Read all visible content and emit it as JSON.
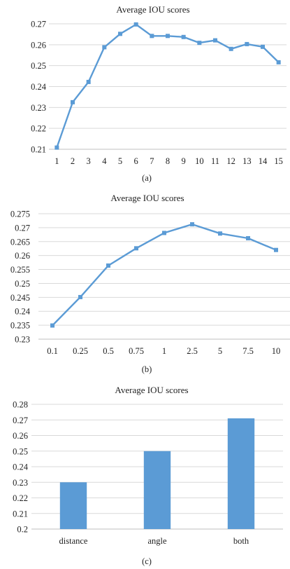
{
  "figures": [
    {
      "caption": "(a)"
    },
    {
      "caption": "(b)"
    },
    {
      "caption": "(c)"
    }
  ],
  "chart_data": [
    {
      "type": "line",
      "title": "Average IOU scores",
      "categories": [
        "1",
        "2",
        "3",
        "4",
        "5",
        "6",
        "7",
        "8",
        "9",
        "10",
        "11",
        "12",
        "13",
        "14",
        "15"
      ],
      "values": [
        0.2108,
        0.2325,
        0.2422,
        0.2588,
        0.2652,
        0.2697,
        0.2642,
        0.2642,
        0.2637,
        0.2609,
        0.2621,
        0.258,
        0.2603,
        0.259,
        0.2516
      ],
      "ylim": [
        0.21,
        0.27
      ],
      "yticks": [
        "0.21",
        "0.22",
        "0.23",
        "0.24",
        "0.25",
        "0.26",
        "0.27"
      ],
      "markers": "square",
      "grid": "horizontal",
      "color": "#5b9bd5"
    },
    {
      "type": "line",
      "title": "Average IOU scores",
      "categories": [
        "0.1",
        "0.25",
        "0.5",
        "0.75",
        "1",
        "2.5",
        "5",
        "7.5",
        "10"
      ],
      "values": [
        0.2349,
        0.2451,
        0.2564,
        0.2626,
        0.2681,
        0.2712,
        0.2679,
        0.2662,
        0.262
      ],
      "ylim": [
        0.23,
        0.275
      ],
      "yticks": [
        "0.23",
        "0.235",
        "0.24",
        "0.245",
        "0.25",
        "0.255",
        "0.26",
        "0.265",
        "0.27",
        "0.275"
      ],
      "markers": "square",
      "grid": "horizontal",
      "color": "#5b9bd5"
    },
    {
      "type": "bar",
      "title": "Average IOU scores",
      "categories": [
        "distance",
        "angle",
        "both"
      ],
      "values": [
        0.23,
        0.25,
        0.271
      ],
      "ylim": [
        0.2,
        0.28
      ],
      "yticks": [
        "0.2",
        "0.21",
        "0.22",
        "0.23",
        "0.24",
        "0.25",
        "0.26",
        "0.27",
        "0.28"
      ],
      "grid": "horizontal",
      "color": "#5b9bd5"
    }
  ]
}
